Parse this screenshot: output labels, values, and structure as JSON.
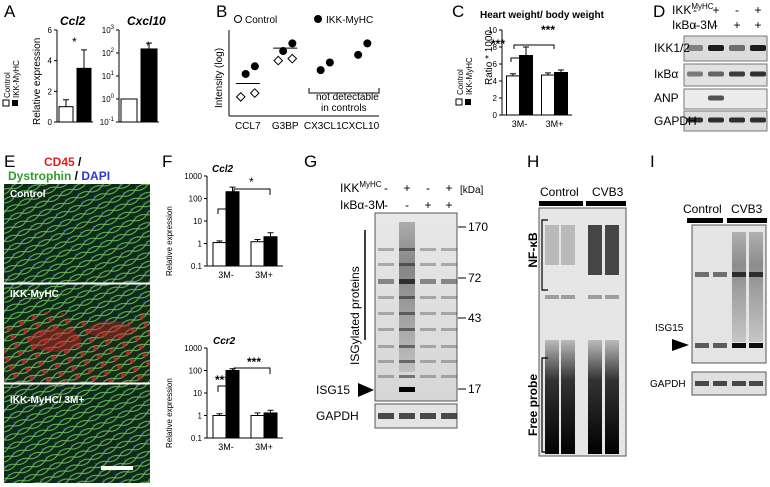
{
  "panels": {
    "A": "A",
    "B": "B",
    "C": "C",
    "D": "D",
    "E": "E",
    "F": "F",
    "G": "G",
    "H": "H",
    "I": "I"
  },
  "A": {
    "legend": [
      "Control",
      "IKK-MyHC"
    ],
    "ylabel": "Relative expression",
    "star": "*"
  },
  "B": {
    "legend": [
      "Control",
      "IKK-MyHC"
    ],
    "ylabel": "Intensity (log)",
    "note": [
      "not detectable",
      "in controls"
    ]
  },
  "C": {
    "title": "Heart weight/ body weight",
    "legend": [
      "Control",
      "IKK-MyHC"
    ],
    "ylabel": "Ratio * 1000",
    "sig": [
      "***",
      "***"
    ]
  },
  "D": {
    "header": [
      "IKK",
      "MyHC",
      "IκBα-3M"
    ],
    "signs_row1": [
      "-",
      "+",
      "-",
      "+"
    ],
    "signs_row2": [
      "-",
      "-",
      "+",
      "+"
    ],
    "bands": [
      "IKK1/2",
      "IκBα",
      "ANP",
      "GAPDH"
    ]
  },
  "E": {
    "legend": [
      "CD45",
      " / ",
      "Dystrophin",
      " / ",
      "DAPI"
    ],
    "images": [
      "Control",
      "IKK-MyHC",
      "IKK-MyHC/ 3M+"
    ]
  },
  "F": {
    "ylabel": "Relative expression",
    "sig_top": [
      "*",
      "*"
    ],
    "sig_bottom": [
      "***",
      "***"
    ]
  },
  "G": {
    "header": [
      "IKK",
      "MyHC",
      "IκBα-3M",
      "[kDa]"
    ],
    "signs_row1": [
      "-",
      "+",
      "-",
      "+"
    ],
    "signs_row2": [
      "-",
      "-",
      "+",
      "+"
    ],
    "bracket_label": "ISGylated proteins",
    "markers": [
      "170",
      "72",
      "43",
      "17"
    ],
    "band_labels": [
      "ISG15",
      "GAPDH"
    ]
  },
  "H": {
    "groups": [
      "Control",
      "CVB3"
    ],
    "side_labels": [
      "NF-κB",
      "Free probe"
    ]
  },
  "I": {
    "groups": [
      "Control",
      "CVB3"
    ],
    "band_labels": [
      "ISG15",
      "GAPDH"
    ]
  },
  "chart_data": [
    {
      "type": "bar",
      "panel": "A",
      "title": "Ccl2",
      "categories": [
        "Control",
        "IKK-MyHC"
      ],
      "values": [
        1,
        3.5
      ],
      "errors": [
        0.45,
        1.2
      ],
      "ylabel": "Relative expression",
      "ylim": [
        0,
        6
      ],
      "yticks": [
        "0",
        "2",
        "4",
        "6"
      ],
      "colors": [
        "#ffffff",
        "#000000"
      ]
    },
    {
      "type": "bar",
      "panel": "A",
      "title": "Cxcl10",
      "categories": [
        "Control",
        "IKK-MyHC"
      ],
      "values": [
        1,
        150
      ],
      "errors": [
        0,
        120
      ],
      "yscale": "log",
      "ylim": [
        0.1,
        1000
      ],
      "yticks": [
        "10^-1",
        "10^0",
        "10^1",
        "10^2",
        "10^3"
      ],
      "colors": [
        "#ffffff",
        "#000000"
      ]
    },
    {
      "type": "scatter",
      "panel": "B",
      "categories": [
        "CCL7",
        "G3BP",
        "CX3CL1",
        "CXCL10"
      ],
      "ylabel": "Intensity (log)",
      "yticks": [],
      "series": [
        {
          "name": "Control",
          "points": [
            {
              "cat": "CCL7",
              "y": [
                4.0,
                4.2
              ]
            },
            {
              "cat": "G3BP",
              "y": [
                5.9,
                6.0
              ]
            }
          ]
        },
        {
          "name": "IKK-MyHC",
          "points": [
            {
              "cat": "CCL7",
              "y": [
                5.2,
                5.6
              ]
            },
            {
              "cat": "G3BP",
              "y": [
                6.4,
                6.8
              ]
            },
            {
              "cat": "CX3CL1",
              "y": [
                5.4,
                5.8
              ]
            },
            {
              "cat": "CXCL10",
              "y": [
                6.2,
                6.8
              ]
            }
          ]
        }
      ],
      "ylim": [
        3,
        7.5
      ]
    },
    {
      "type": "bar",
      "panel": "C",
      "title": "Heart weight/ body weight",
      "categories": [
        "3M-",
        "3M+"
      ],
      "series": [
        {
          "name": "Control",
          "values": [
            4.6,
            4.7
          ],
          "errors": [
            0.25,
            0.25
          ]
        },
        {
          "name": "IKK-MyHC",
          "values": [
            7.0,
            5.0
          ],
          "errors": [
            1.0,
            0.3
          ]
        }
      ],
      "ylabel": "Ratio * 1000",
      "ylim": [
        0,
        10
      ],
      "yticks": [
        "0",
        "2",
        "4",
        "6",
        "8",
        "10"
      ]
    },
    {
      "type": "bar",
      "panel": "F",
      "title": "Ccl2",
      "categories": [
        "3M-",
        "3M+"
      ],
      "series": [
        {
          "name": "Control",
          "values": [
            1.1,
            1.2
          ],
          "errors": [
            0.2,
            0.3
          ]
        },
        {
          "name": "IKK-MyHC",
          "values": [
            200,
            2.0
          ],
          "errors": [
            120,
            1.0
          ]
        }
      ],
      "yscale": "log",
      "ylabel": "Relative expression",
      "ylim": [
        0.1,
        1000
      ],
      "yticks": [
        "0.1",
        "1",
        "10",
        "100",
        "1000"
      ]
    },
    {
      "type": "bar",
      "panel": "F",
      "title": "Ccr2",
      "categories": [
        "3M-",
        "3M+"
      ],
      "series": [
        {
          "name": "Control",
          "values": [
            1.0,
            1.0
          ],
          "errors": [
            0.2,
            0.3
          ]
        },
        {
          "name": "IKK-MyHC",
          "values": [
            100,
            1.3
          ],
          "errors": [
            20,
            0.4
          ]
        }
      ],
      "yscale": "log",
      "ylabel": "Relative expression",
      "ylim": [
        0.1,
        1000
      ],
      "yticks": [
        "0.1",
        "1",
        "10",
        "100",
        "1000"
      ]
    }
  ]
}
